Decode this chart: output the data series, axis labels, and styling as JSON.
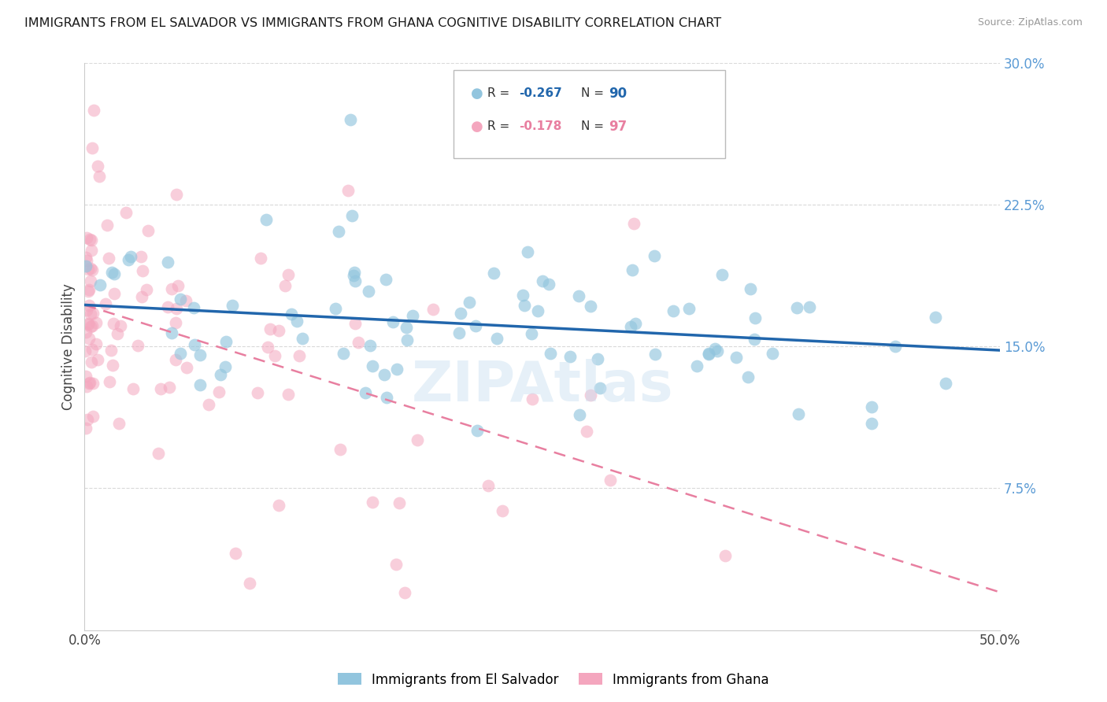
{
  "title": "IMMIGRANTS FROM EL SALVADOR VS IMMIGRANTS FROM GHANA COGNITIVE DISABILITY CORRELATION CHART",
  "source": "Source: ZipAtlas.com",
  "ylabel": "Cognitive Disability",
  "legend_blue_label": "Immigrants from El Salvador",
  "legend_pink_label": "Immigrants from Ghana",
  "r_blue": -0.267,
  "n_blue": 90,
  "r_pink": -0.178,
  "n_pink": 97,
  "xlim": [
    0.0,
    0.5
  ],
  "ylim": [
    0.0,
    0.3
  ],
  "xtick_positions": [
    0.0,
    0.5
  ],
  "xtick_labels": [
    "0.0%",
    "50.0%"
  ],
  "yticks_right": [
    0.075,
    0.15,
    0.225,
    0.3
  ],
  "ytick_right_labels": [
    "7.5%",
    "15.0%",
    "22.5%",
    "30.0%"
  ],
  "color_blue": "#92c5de",
  "color_pink": "#f4a6be",
  "trendline_blue": "#2166ac",
  "trendline_pink": "#e87fa0",
  "watermark": "ZIPAtlas",
  "watermark_color": "#c8dff0",
  "background_color": "#ffffff",
  "grid_color": "#d0d0d0",
  "blue_trend_start_y": 0.172,
  "blue_trend_end_y": 0.148,
  "pink_trend_start_y": 0.172,
  "pink_trend_end_y": 0.02
}
